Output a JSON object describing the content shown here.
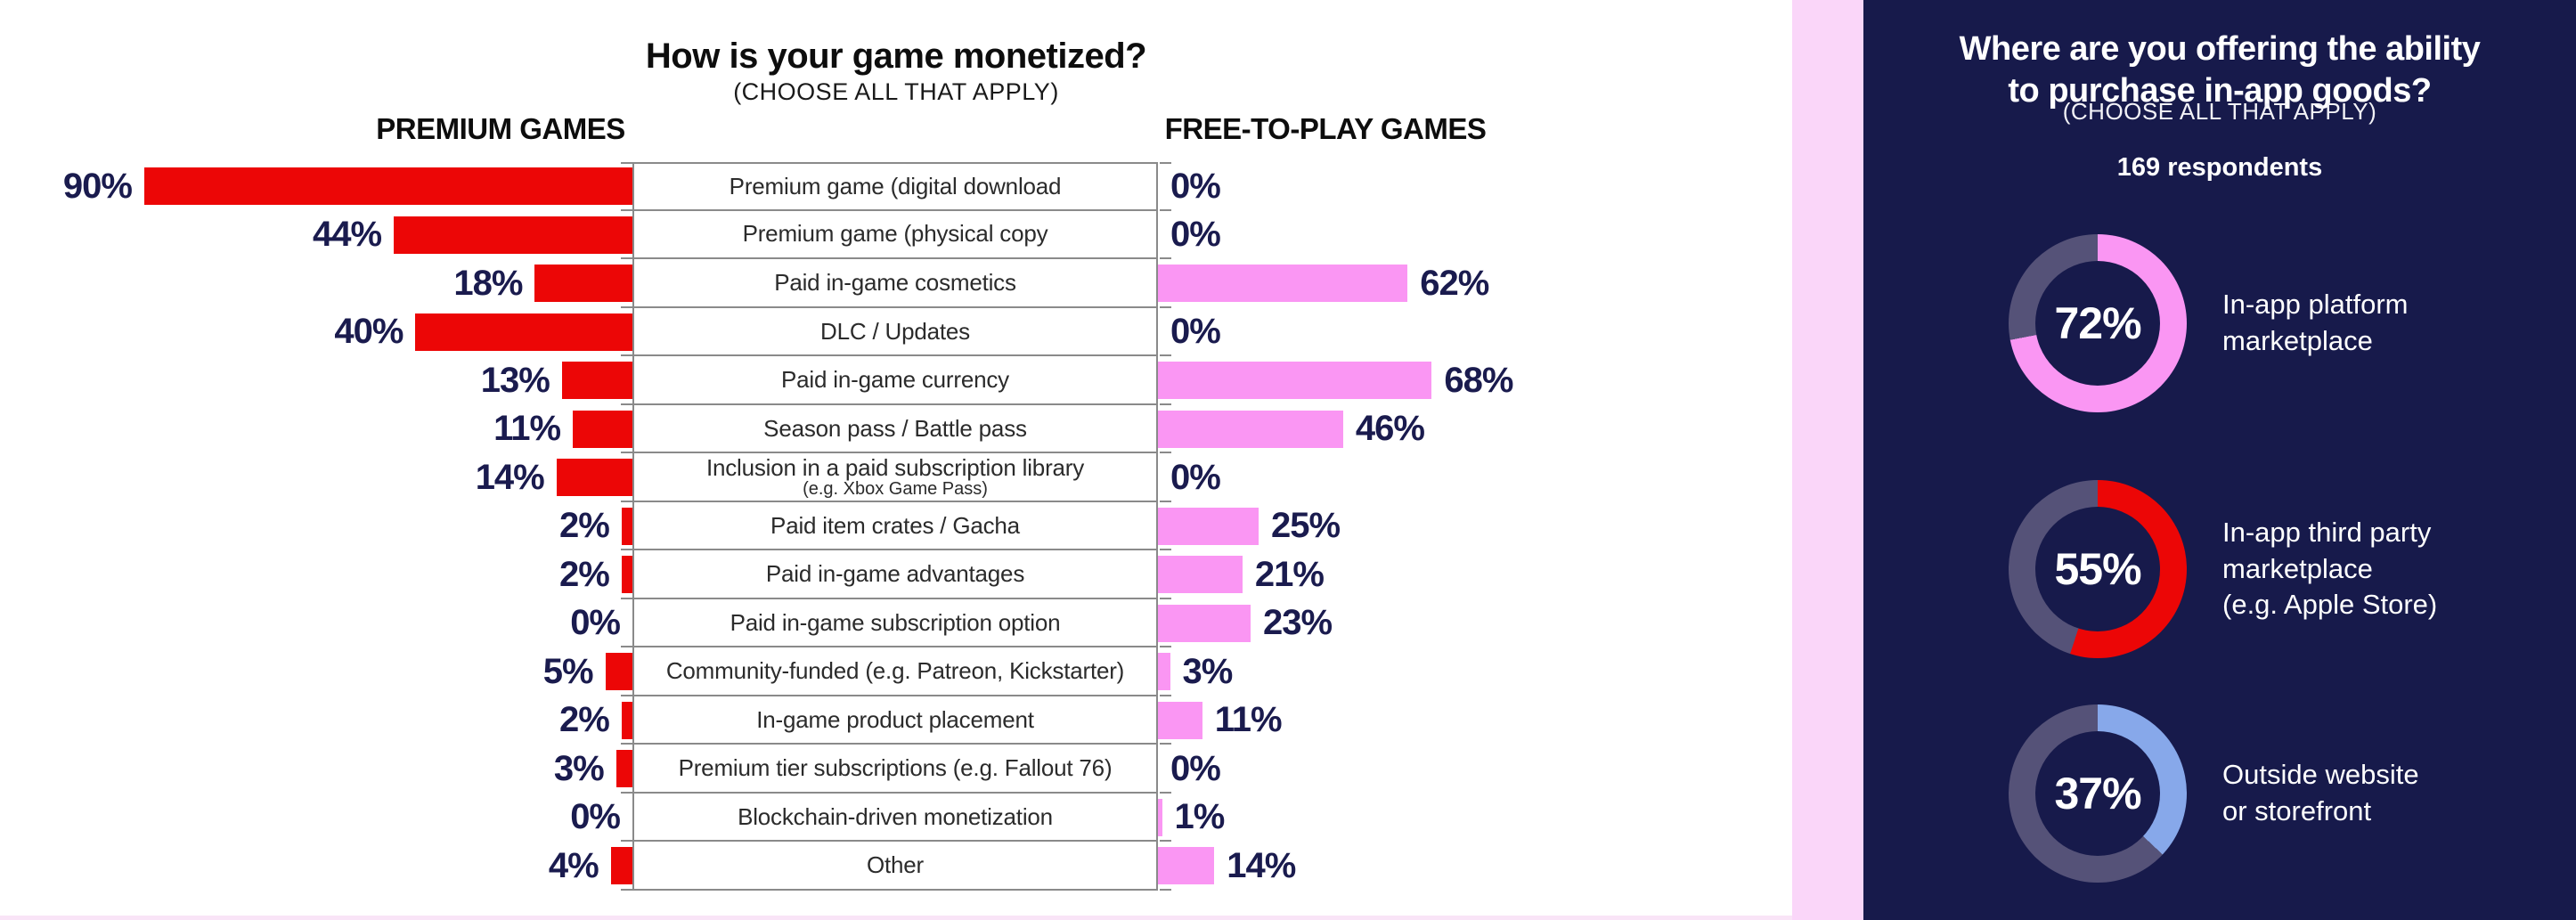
{
  "main_chart": {
    "title": "How is your game monetized?",
    "subtitle": "(CHOOSE ALL THAT APPLY)",
    "left_header": "PREMIUM GAMES",
    "right_header": "FREE-TO-PLAY GAMES",
    "rows": [
      {
        "label": "Premium game (digital download",
        "sublabel": "",
        "premium": 90,
        "f2p": 0,
        "premium_label": "90%",
        "f2p_label": "0%"
      },
      {
        "label": "Premium game (physical copy",
        "sublabel": "",
        "premium": 44,
        "f2p": 0,
        "premium_label": "44%",
        "f2p_label": "0%"
      },
      {
        "label": "Paid in-game cosmetics",
        "sublabel": "",
        "premium": 18,
        "f2p": 62,
        "premium_label": "18%",
        "f2p_label": "62%"
      },
      {
        "label": "DLC / Updates",
        "sublabel": "",
        "premium": 40,
        "f2p": 0,
        "premium_label": "40%",
        "f2p_label": "0%"
      },
      {
        "label": "Paid in-game currency",
        "sublabel": "",
        "premium": 13,
        "f2p": 68,
        "premium_label": "13%",
        "f2p_label": "68%"
      },
      {
        "label": "Season pass / Battle pass",
        "sublabel": "",
        "premium": 11,
        "f2p": 46,
        "premium_label": "11%",
        "f2p_label": "46%"
      },
      {
        "label": "Inclusion in a paid subscription library",
        "sublabel": "(e.g. Xbox Game Pass)",
        "premium": 14,
        "f2p": 0,
        "premium_label": "14%",
        "f2p_label": "0%"
      },
      {
        "label": "Paid item crates / Gacha",
        "sublabel": "",
        "premium": 2,
        "f2p": 25,
        "premium_label": "2%",
        "f2p_label": "25%"
      },
      {
        "label": "Paid in-game advantages",
        "sublabel": "",
        "premium": 2,
        "f2p": 21,
        "premium_label": "2%",
        "f2p_label": "21%"
      },
      {
        "label": "Paid in-game subscription option",
        "sublabel": "",
        "premium": 0,
        "f2p": 23,
        "premium_label": "0%",
        "f2p_label": "23%"
      },
      {
        "label": "Community-funded (e.g. Patreon, Kickstarter)",
        "sublabel": "",
        "premium": 5,
        "f2p": 3,
        "premium_label": "5%",
        "f2p_label": "3%"
      },
      {
        "label": "In-game product placement",
        "sublabel": "",
        "premium": 2,
        "f2p": 11,
        "premium_label": "2%",
        "f2p_label": "11%"
      },
      {
        "label": "Premium tier subscriptions (e.g. Fallout 76)",
        "sublabel": "",
        "premium": 3,
        "f2p": 0,
        "premium_label": "3%",
        "f2p_label": "0%"
      },
      {
        "label": "Blockchain-driven monetization",
        "sublabel": "",
        "premium": 0,
        "f2p": 1,
        "premium_label": "0%",
        "f2p_label": "1%"
      },
      {
        "label": "Other",
        "sublabel": "",
        "premium": 4,
        "f2p": 14,
        "premium_label": "4%",
        "f2p_label": "14%"
      }
    ]
  },
  "side_panel": {
    "title": "Where are you offering the ability\nto purchase in-app goods?",
    "subtitle": "(CHOOSE ALL THAT APPLY)",
    "respondents": "169 respondents",
    "donuts": [
      {
        "value": 72,
        "pct_label": "72%",
        "caption": "In-app platform\nmarketplace",
        "color": "#FA96F3"
      },
      {
        "value": 55,
        "pct_label": "55%",
        "caption": "In-app third party\nmarketplace\n(e.g. Apple Store)",
        "color": "#EC0606"
      },
      {
        "value": 37,
        "pct_label": "37%",
        "caption": "Outside website\nor storefront",
        "color": "#87A8EA"
      }
    ]
  },
  "colors": {
    "premium_bar": "#EC0606",
    "f2p_bar": "#FA96F3",
    "panel_bg": "#171A4B",
    "donut_track": "#555278",
    "value_text": "#1A1B4E",
    "pink_strip": "#FAD6F9",
    "bottom_strip": "#F9E4F7",
    "table_line": "#8A8A8A"
  },
  "chart_data": [
    {
      "type": "bar",
      "orientation": "horizontal-diverging",
      "title": "How is your game monetized?",
      "subtitle": "(CHOOSE ALL THAT APPLY)",
      "unit": "%",
      "categories": [
        "Premium game (digital download",
        "Premium game (physical copy",
        "Paid in-game cosmetics",
        "DLC / Updates",
        "Paid in-game currency",
        "Season pass / Battle pass",
        "Inclusion in a paid subscription library (e.g. Xbox Game Pass)",
        "Paid item crates / Gacha",
        "Paid in-game advantages",
        "Paid in-game subscription option",
        "Community-funded (e.g. Patreon, Kickstarter)",
        "In-game product placement",
        "Premium tier subscriptions (e.g. Fallout 76)",
        "Blockchain-driven monetization",
        "Other"
      ],
      "series": [
        {
          "name": "PREMIUM GAMES",
          "color": "#EC0606",
          "values": [
            90,
            44,
            18,
            40,
            13,
            11,
            14,
            2,
            2,
            0,
            5,
            2,
            3,
            0,
            4
          ]
        },
        {
          "name": "FREE-TO-PLAY GAMES",
          "color": "#FA96F3",
          "values": [
            0,
            0,
            62,
            0,
            68,
            46,
            0,
            25,
            21,
            23,
            3,
            11,
            0,
            1,
            14
          ]
        }
      ],
      "legend_position": "column-headers",
      "grid": false
    },
    {
      "type": "pie",
      "style": "donut",
      "title": "Where are you offering the ability to purchase in-app goods?",
      "subtitle": "(CHOOSE ALL THAT APPLY)",
      "respondents": "169 respondents",
      "unit": "%",
      "slices": [
        {
          "label": "In-app platform marketplace",
          "value": 72,
          "color": "#FA96F3"
        },
        {
          "label": "In-app third party marketplace (e.g. Apple Store)",
          "value": 55,
          "color": "#EC0606"
        },
        {
          "label": "Outside website or storefront",
          "value": 37,
          "color": "#87A8EA"
        }
      ]
    }
  ]
}
